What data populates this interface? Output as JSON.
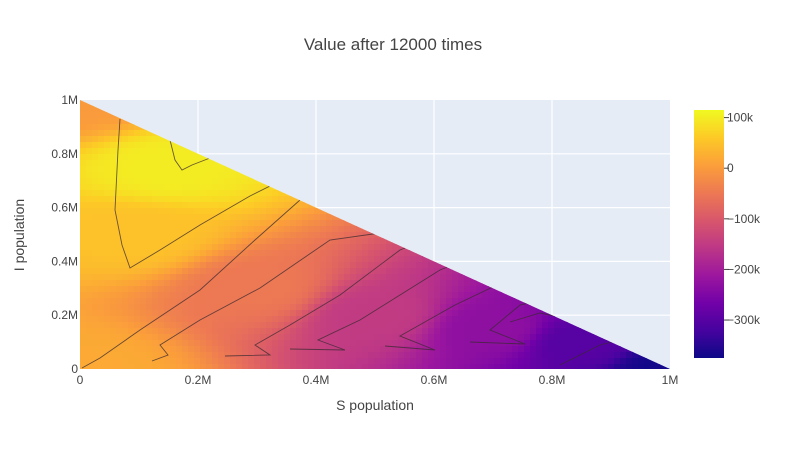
{
  "chart_data": {
    "type": "heatmap",
    "title": "Value after 12000 times",
    "xlabel": "S population",
    "ylabel": "I population",
    "xlim": [
      0,
      1000000
    ],
    "ylim": [
      0,
      1000000
    ],
    "x_ticks": [
      {
        "value": 0,
        "label": "0"
      },
      {
        "value": 200000,
        "label": "0.2M"
      },
      {
        "value": 400000,
        "label": "0.4M"
      },
      {
        "value": 600000,
        "label": "0.6M"
      },
      {
        "value": 800000,
        "label": "0.8M"
      },
      {
        "value": 1000000,
        "label": "1M"
      }
    ],
    "y_ticks": [
      {
        "value": 0,
        "label": "0"
      },
      {
        "value": 200000,
        "label": "0.2M"
      },
      {
        "value": 400000,
        "label": "0.4M"
      },
      {
        "value": 600000,
        "label": "0.6M"
      },
      {
        "value": 800000,
        "label": "0.8M"
      },
      {
        "value": 1000000,
        "label": "1M"
      }
    ],
    "domain": "S + I <= 1M (triangular region)",
    "colorscale": "plasma",
    "colorbar": {
      "range": [
        -375000,
        115000
      ],
      "ticks": [
        {
          "value": 100000,
          "label": "100k"
        },
        {
          "value": 0,
          "label": "0"
        },
        {
          "value": -100000,
          "label": "−100k"
        },
        {
          "value": -200000,
          "label": "−200k"
        },
        {
          "value": -300000,
          "label": "−300k"
        }
      ]
    },
    "value_samples": [
      {
        "s": 0,
        "i": 1000000,
        "value": 0
      },
      {
        "s": 150000,
        "i": 750000,
        "value": 100000
      },
      {
        "s": 100000,
        "i": 500000,
        "value": 50000
      },
      {
        "s": 0,
        "i": 0,
        "value": 20000
      },
      {
        "s": 300000,
        "i": 300000,
        "value": -50000
      },
      {
        "s": 500000,
        "i": 200000,
        "value": -150000
      },
      {
        "s": 700000,
        "i": 150000,
        "value": -230000
      },
      {
        "s": 850000,
        "i": 100000,
        "value": -300000
      },
      {
        "s": 1000000,
        "i": 0,
        "value": -370000
      }
    ],
    "background_color": "#e5ecf6",
    "grid": true,
    "contour_lines": true
  }
}
